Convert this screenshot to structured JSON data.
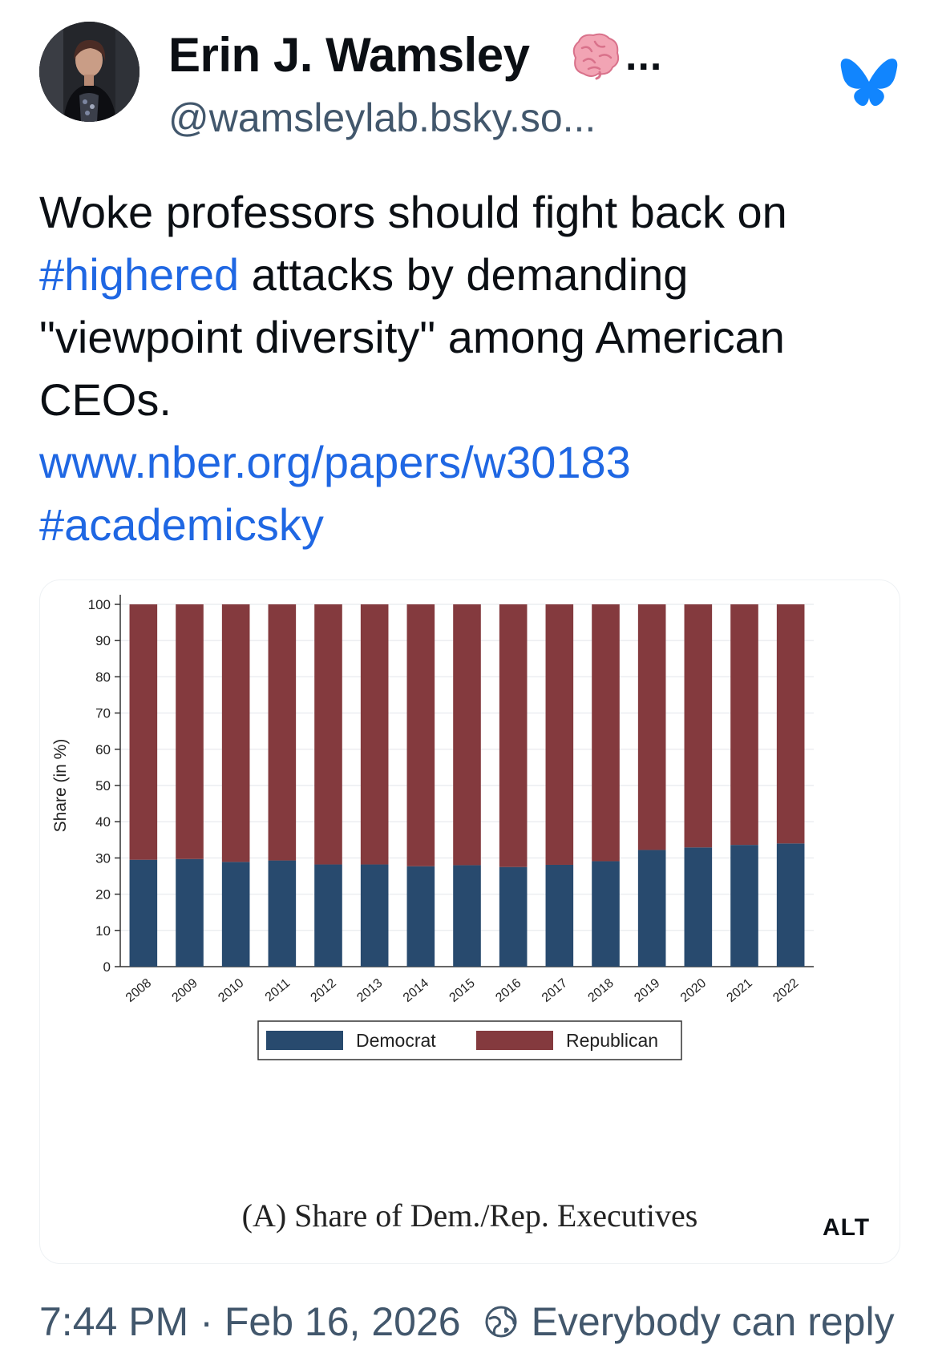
{
  "author": {
    "display_name": "Erin J. Wamsley",
    "handle": "@wamsleylab.bsky.so...",
    "emoji_icon": "brain-icon",
    "more_label": "..."
  },
  "post": {
    "text_lines": [
      {
        "segments": [
          {
            "text": "Woke professors should fight back on",
            "link": false
          }
        ]
      },
      {
        "segments": [
          {
            "text": "#highered",
            "link": true
          },
          {
            "text": " attacks by demanding",
            "link": false
          }
        ]
      },
      {
        "segments": [
          {
            "text": "\"viewpoint diversity\" among American",
            "link": false
          }
        ]
      },
      {
        "segments": [
          {
            "text": "CEOs.",
            "link": false
          }
        ]
      },
      {
        "segments": [
          {
            "text": "www.nber.org/papers/w30183",
            "link": true
          }
        ]
      },
      {
        "segments": [
          {
            "text": "#academicsky",
            "link": true
          }
        ]
      }
    ],
    "link_color": "#1f67e3"
  },
  "embed": {
    "alt_label": "ALT",
    "caption": "(A) Share of Dem./Rep. Executives"
  },
  "chart_data": {
    "type": "bar",
    "stacked": true,
    "title": "",
    "xlabel": "",
    "ylabel": "Share (in %)",
    "ylim": [
      0,
      100
    ],
    "yticks": [
      0,
      10,
      20,
      30,
      40,
      50,
      60,
      70,
      80,
      90,
      100
    ],
    "grid": true,
    "legend_position": "bottom",
    "categories": [
      "2008",
      "2009",
      "2010",
      "2011",
      "2012",
      "2013",
      "2014",
      "2015",
      "2016",
      "2017",
      "2018",
      "2019",
      "2020",
      "2021",
      "2022"
    ],
    "series": [
      {
        "name": "Democrat",
        "color": "#284a6e",
        "values": [
          29.5,
          29.7,
          28.9,
          29.3,
          28.2,
          28.2,
          27.7,
          28.0,
          27.5,
          28.1,
          29.1,
          32.2,
          32.9,
          33.6,
          34.0
        ]
      },
      {
        "name": "Republican",
        "color": "#843a3e",
        "values": [
          70.5,
          70.3,
          71.1,
          70.7,
          71.8,
          71.8,
          72.3,
          72.0,
          72.5,
          71.9,
          70.9,
          67.8,
          67.1,
          66.4,
          66.0
        ]
      }
    ]
  },
  "footer": {
    "time": "7:44 PM",
    "separator": "·",
    "date": "Feb 16, 2026",
    "reply_setting": "Everybody can reply"
  },
  "colors": {
    "accent": "#1185fe",
    "muted_text": "#42576c"
  }
}
